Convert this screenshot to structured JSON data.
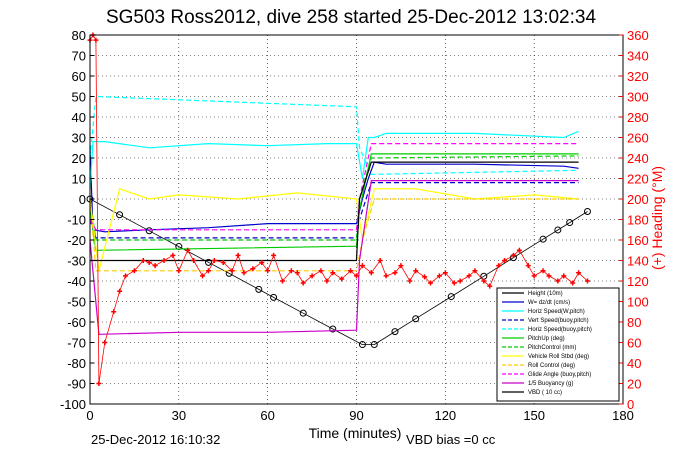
{
  "chart_data": {
    "type": "line",
    "title": "SG503 Ross2012, dive 258 started 25-Dec-2012 13:02:34",
    "xlabel": "Time (minutes)",
    "ylabel": "",
    "y2label": "(+) Heading (°M)",
    "xlim": [
      0,
      180
    ],
    "ylim": [
      -100,
      80
    ],
    "y2lim": [
      0,
      360
    ],
    "x_ticks": [
      "0",
      "30",
      "60",
      "90",
      "120",
      "150",
      "180"
    ],
    "y_ticks": [
      "80",
      "70",
      "60",
      "50",
      "40",
      "30",
      "20",
      "10",
      "0",
      "-10",
      "-20",
      "-30",
      "-40",
      "-50",
      "-60",
      "-70",
      "-80",
      "-90",
      "-100"
    ],
    "y2_ticks": [
      "360",
      "340",
      "320",
      "300",
      "280",
      "260",
      "240",
      "220",
      "200",
      "180",
      "160",
      "140",
      "120",
      "100",
      "80",
      "60",
      "40",
      "20",
      "0"
    ],
    "grid": true,
    "legend_position": "bottom-right",
    "footer_left": "25-Dec-2012 16:10:32",
    "footer_right": "VBD bias =0 cc",
    "series": [
      {
        "name": "Height (10m)",
        "color": "#000000",
        "style": "markers",
        "x": [
          0,
          10,
          20,
          30,
          40,
          47,
          57,
          62,
          72,
          82,
          92,
          96,
          103,
          110,
          122,
          133,
          143,
          153,
          158,
          162,
          168
        ],
        "y": [
          0,
          -7.7,
          -15.5,
          -23.2,
          -30.9,
          -36.3,
          -44.1,
          -48,
          -55.7,
          -63.4,
          -71,
          -71,
          -64.7,
          -58.4,
          -47.6,
          -37.7,
          -28.6,
          -19.6,
          -15.1,
          -11.5,
          -6.1
        ]
      },
      {
        "name": "W= dz/dt (cm/s)",
        "color": "#0000cc",
        "style": "solid",
        "x": [
          0,
          1,
          5,
          20,
          40,
          60,
          80,
          90,
          92,
          94,
          96,
          100,
          130,
          160,
          165
        ],
        "y": [
          25,
          -15,
          -16,
          -15,
          -14,
          -12,
          -12,
          -12,
          0,
          10,
          18,
          17,
          17,
          16,
          15
        ]
      },
      {
        "name": "Horiz Speed(W,pitch)",
        "color": "#00ffff",
        "style": "solid",
        "x": [
          0,
          1,
          5,
          20,
          40,
          60,
          80,
          90,
          92,
          94,
          96,
          100,
          130,
          160,
          165
        ],
        "y": [
          5,
          28,
          28,
          25,
          27,
          26,
          27,
          27,
          10,
          30,
          30,
          32,
          32,
          30,
          33
        ]
      },
      {
        "name": "Vert Speed(buoy,pitch)",
        "color": "#0000cc",
        "style": "dashed",
        "x": [
          0,
          2,
          90,
          91,
          95,
          165
        ],
        "y": [
          -10,
          -19,
          -19,
          -10,
          8,
          8
        ]
      },
      {
        "name": "Horiz Speed(buoy,pitch)",
        "color": "#00ffff",
        "style": "dashed",
        "x": [
          0,
          2,
          90,
          91,
          95,
          165
        ],
        "y": [
          20,
          50,
          45,
          25,
          12,
          14
        ]
      },
      {
        "name": "PitchUp (deg)",
        "color": "#00cc00",
        "style": "solid",
        "x": [
          0,
          2,
          90,
          91,
          95,
          165
        ],
        "y": [
          -5,
          -25,
          -23,
          -5,
          22,
          22
        ]
      },
      {
        "name": "PitchControl (mm)",
        "color": "#00cc00",
        "style": "dashed",
        "x": [
          0,
          2,
          90,
          91,
          95,
          165
        ],
        "y": [
          0,
          -20,
          -20,
          0,
          20,
          21
        ]
      },
      {
        "name": "Vehicle Roll Stbd (deg)",
        "color": "#ffff00",
        "style": "solid",
        "x": [
          0,
          3,
          10,
          20,
          30,
          50,
          70,
          90,
          92,
          96,
          110,
          130,
          150,
          165
        ],
        "y": [
          0,
          -35,
          5,
          0,
          2,
          0,
          3,
          0,
          -20,
          5,
          5,
          0,
          2,
          0
        ]
      },
      {
        "name": "Roll Control (deg)",
        "color": "#ffcc00",
        "style": "dashed",
        "x": [
          0,
          2,
          90,
          92,
          96,
          165
        ],
        "y": [
          0,
          -35,
          -35,
          -20,
          0,
          0
        ]
      },
      {
        "name": "Glide Angle (buoy,pitch)",
        "color": "#ff00ff",
        "style": "dashed",
        "x": [
          0,
          2,
          90,
          91,
          95,
          165
        ],
        "y": [
          -10,
          -15,
          -15,
          0,
          27,
          27
        ]
      },
      {
        "name": "1/5 Buoyancy (g)",
        "color": "#cc00cc",
        "style": "solid",
        "x": [
          0,
          3,
          30,
          60,
          90,
          91,
          95,
          165
        ],
        "y": [
          -20,
          -66,
          -65,
          -65,
          -64,
          -30,
          9,
          9
        ]
      },
      {
        "name": "VBD ( 10 cc)",
        "color": "#000000",
        "style": "solid",
        "x": [
          0,
          2,
          90,
          91,
          95,
          165
        ],
        "y": [
          -30,
          -30,
          -30,
          0,
          18,
          18
        ]
      },
      {
        "name": "Heading (°M)",
        "color": "#ff0000",
        "style": "markers",
        "axis": "right",
        "x": [
          0,
          1,
          2,
          3,
          5,
          8,
          10,
          12,
          15,
          18,
          20,
          22,
          25,
          28,
          30,
          33,
          35,
          38,
          40,
          42,
          45,
          48,
          50,
          52,
          55,
          58,
          60,
          62,
          65,
          68,
          70,
          72,
          75,
          78,
          80,
          82,
          85,
          88,
          90,
          92,
          95,
          98,
          100,
          103,
          105,
          108,
          110,
          113,
          115,
          118,
          120,
          123,
          125,
          128,
          130,
          133,
          135,
          138,
          140,
          143,
          145,
          148,
          150,
          153,
          155,
          158,
          160,
          163,
          165,
          168
        ],
        "y": [
          355,
          360,
          355,
          20,
          60,
          90,
          110,
          125,
          130,
          140,
          138,
          135,
          140,
          145,
          130,
          150,
          140,
          125,
          130,
          140,
          138,
          130,
          145,
          128,
          132,
          138,
          130,
          145,
          120,
          130,
          128,
          118,
          125,
          130,
          120,
          128,
          122,
          130,
          125,
          135,
          128,
          140,
          125,
          128,
          135,
          120,
          130,
          124,
          118,
          125,
          128,
          118,
          120,
          125,
          130,
          120,
          115,
          135,
          140,
          145,
          150,
          135,
          125,
          130,
          125,
          120,
          125,
          118,
          128,
          120
        ]
      }
    ]
  }
}
